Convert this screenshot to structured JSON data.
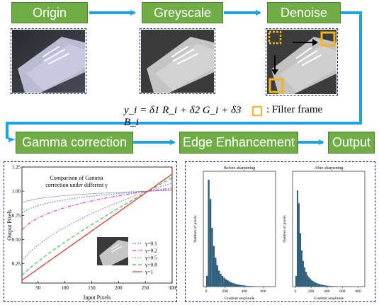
{
  "steps": {
    "origin": "Origin",
    "greyscale": "Greyscale",
    "denoise": "Denoise",
    "gamma": "Gamma correction",
    "edge": "Edge Enhancement",
    "output": "Output"
  },
  "formula": "y_i = δ1 R_i + δ2 G_i + δ3 B_i",
  "filter_legend": ": Filter frame",
  "colors": {
    "step_fill": "#70ad47",
    "arrow": "#1fa2e4",
    "filter_frame": "#f4b41a",
    "frame_border": "#1f2d4d"
  },
  "chart_data": [
    {
      "type": "line",
      "title": "Comparison of Gamma correction under different γ",
      "xlabel": "Input Pixels",
      "ylabel": "Output Pixels",
      "xlim": [
        20,
        300
      ],
      "ylim": [
        0.05,
        1.25
      ],
      "xticks": [
        "50",
        "100",
        "150",
        "200",
        "250",
        "300"
      ],
      "yticks": [
        "0.25",
        "0.50",
        "0.75",
        "1.00",
        "1.25"
      ],
      "series": [
        {
          "name": "γ=0.1",
          "gamma": 0.1,
          "color": "#4b6bd0",
          "dash": "1.5,2"
        },
        {
          "name": "γ=0.2",
          "gamma": 0.2,
          "color": "#d23ad2",
          "dash": "5,2,1.5,2"
        },
        {
          "name": "γ=0.5",
          "gamma": 0.5,
          "color": "#7a6bd4",
          "dash": "1.5,2"
        },
        {
          "name": "γ=0.8",
          "gamma": 0.8,
          "color": "#3cb84a",
          "dash": "5,3"
        },
        {
          "name": "γ=1",
          "gamma": 1.0,
          "color": "#e03a2e",
          "dash": ""
        }
      ],
      "extra_series": [
        {
          "gamma": 0.05,
          "color": "#a8a8a8"
        }
      ]
    },
    {
      "type": "bar",
      "title": "Before sharpening",
      "xlabel": "Gradient amplitude",
      "ylabel": "Number of pixels",
      "xticks": [
        "0",
        "200",
        "400",
        "600"
      ],
      "xlim": [
        0,
        700
      ],
      "values": [
        0.1,
        1.0,
        0.82,
        0.55,
        0.38,
        0.27,
        0.2,
        0.15,
        0.12,
        0.1,
        0.085,
        0.07,
        0.06,
        0.05,
        0.04,
        0.035,
        0.03,
        0.025,
        0.02,
        0.018,
        0.015,
        0.012,
        0.01,
        0.008,
        0.007,
        0.006,
        0.005,
        0.004,
        0.004,
        0.003,
        0.003,
        0.002,
        0.002,
        0.002,
        0.001,
        0.001,
        0.001,
        0.001,
        0.001,
        0.001
      ]
    },
    {
      "type": "bar",
      "title": "After sharpening",
      "xlabel": "Gradient amplitude",
      "ylabel": "Number of pixels",
      "xticks": [
        "0",
        "200",
        "400",
        "600",
        "800"
      ],
      "xlim": [
        0,
        850
      ],
      "values": [
        0.1,
        0.9,
        0.78,
        0.5,
        0.34,
        0.24,
        0.18,
        0.14,
        0.11,
        0.09,
        0.075,
        0.062,
        0.052,
        0.044,
        0.037,
        0.031,
        0.026,
        0.022,
        0.018,
        0.016,
        0.013,
        0.011,
        0.009,
        0.008,
        0.007,
        0.006,
        0.005,
        0.004,
        0.004,
        0.003,
        0.003,
        0.002,
        0.002,
        0.002,
        0.001,
        0.001,
        0.001,
        0.001,
        0.001,
        0.001
      ]
    }
  ]
}
